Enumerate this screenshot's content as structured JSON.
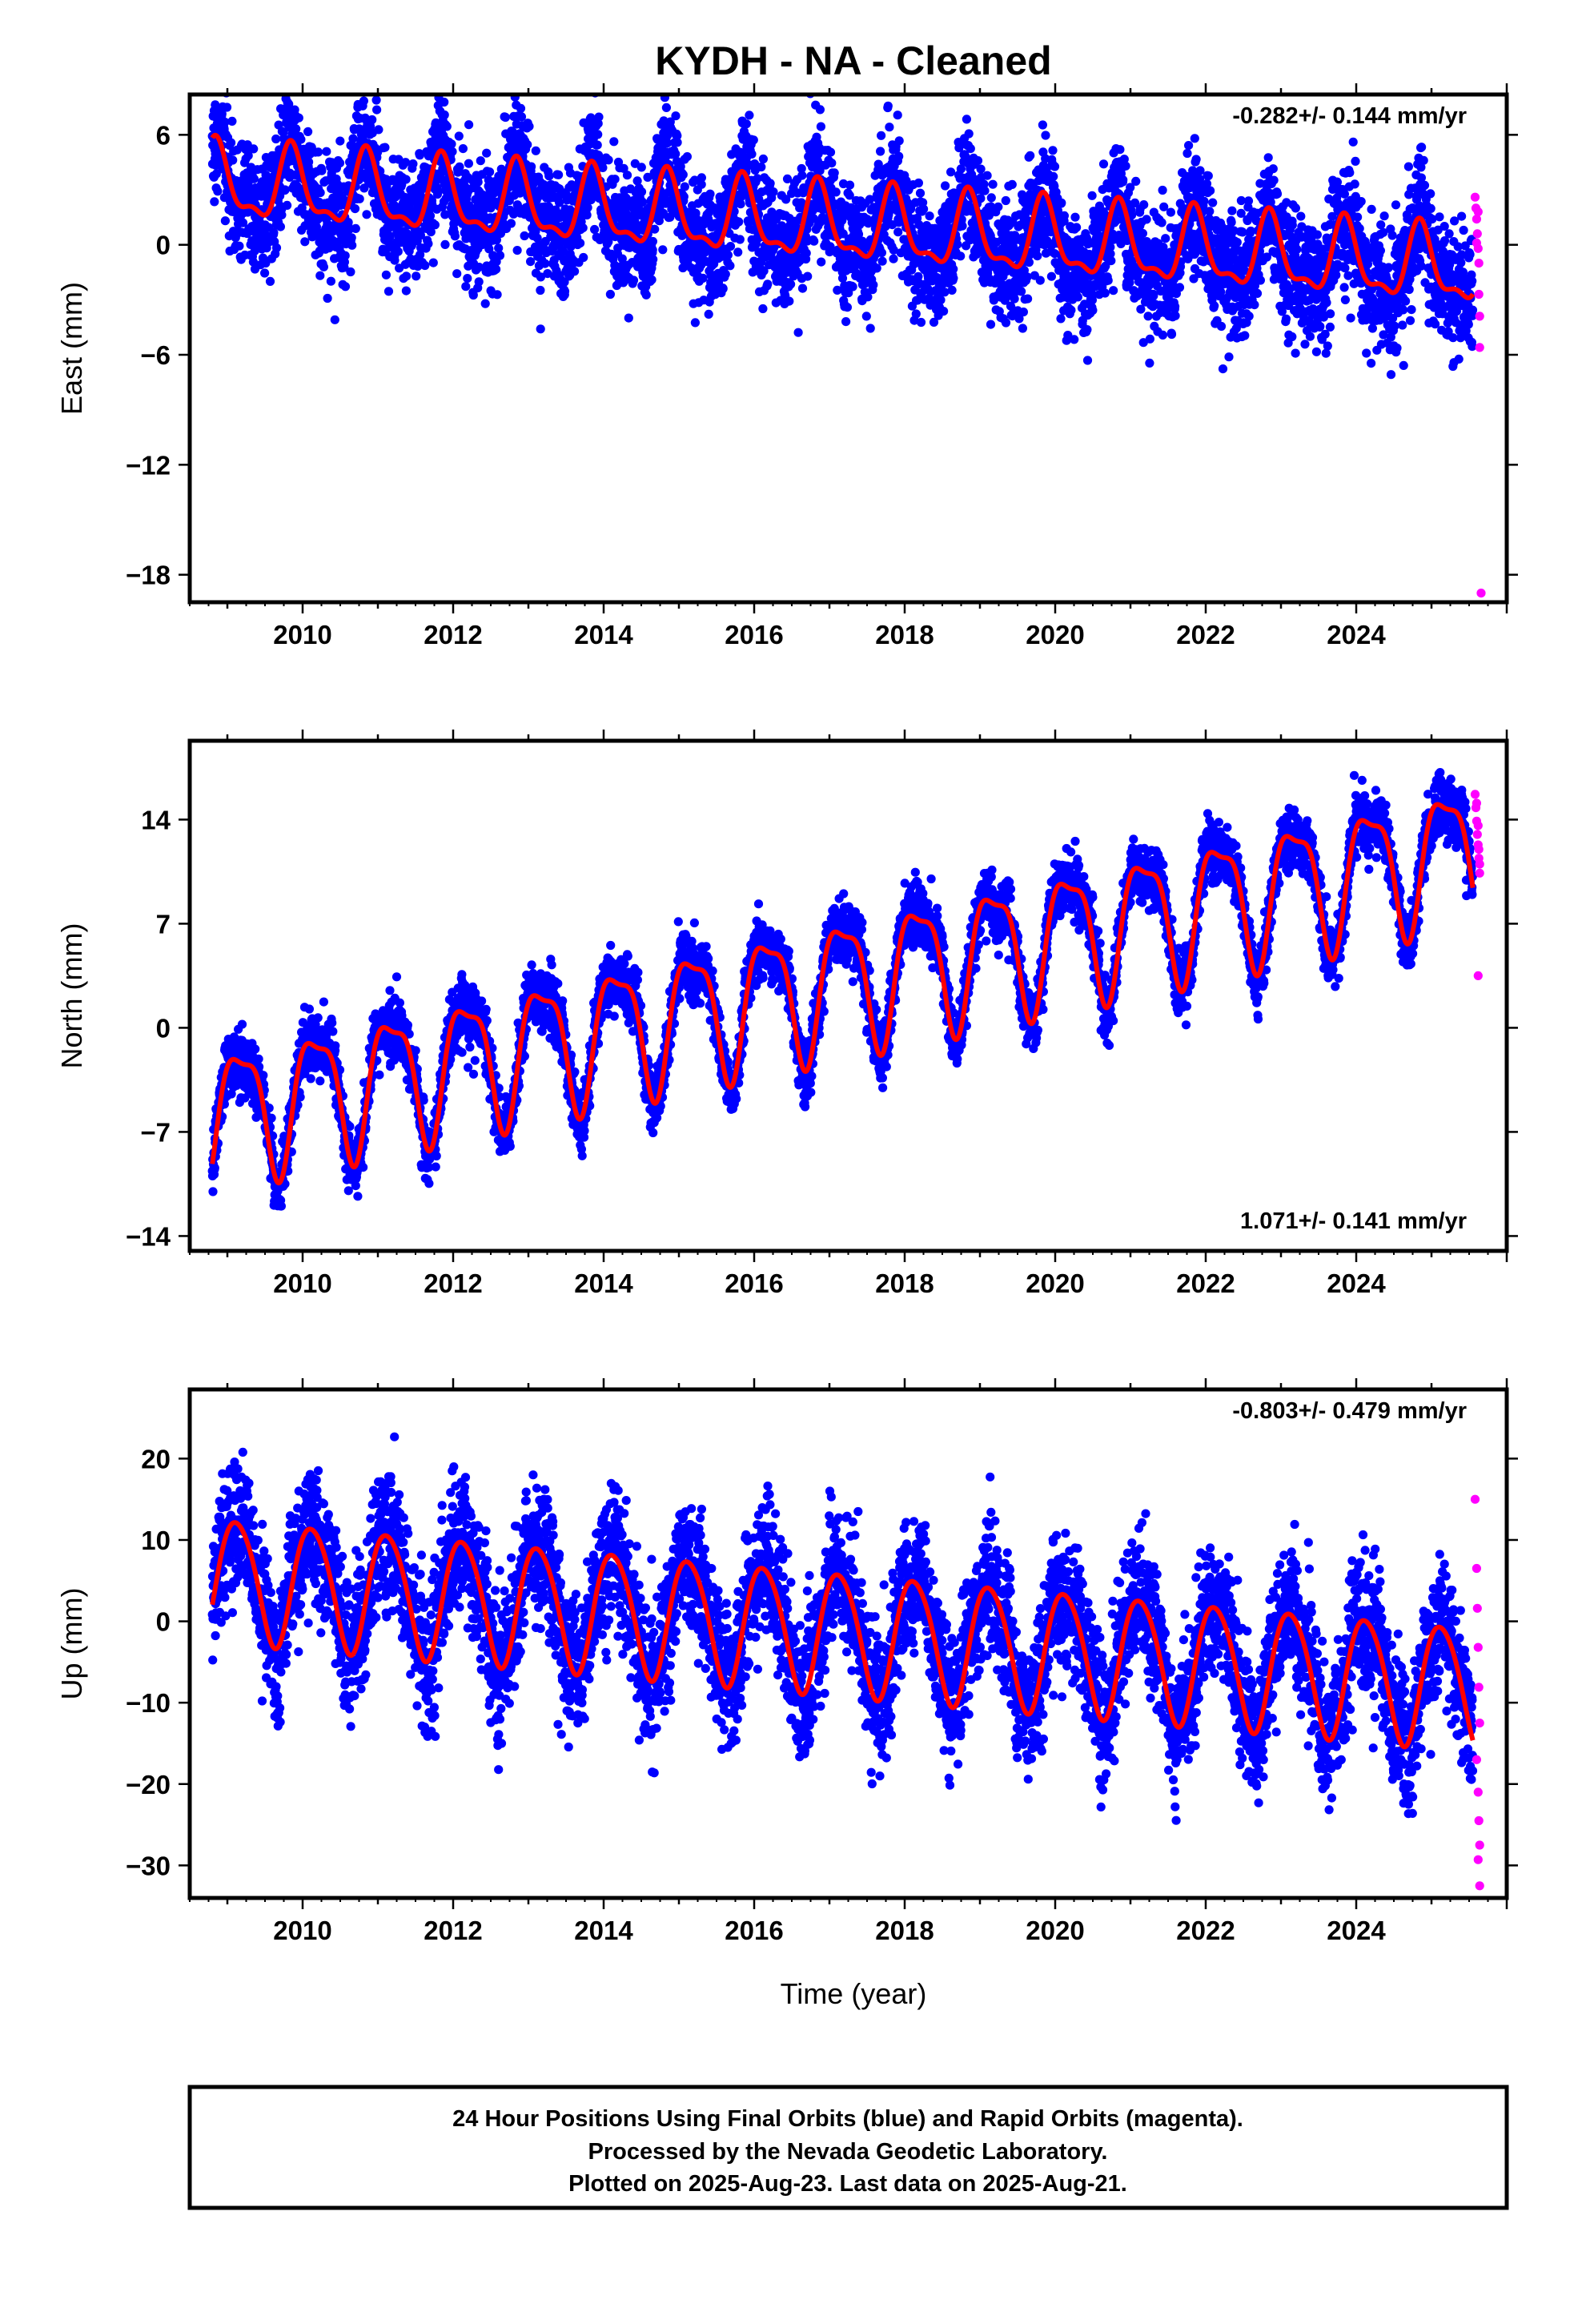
{
  "title": "KYDH  - NA - Cleaned",
  "xlabel": "Time (year)",
  "footer": {
    "line1": "24 Hour Positions Using Final Orbits (blue) and Rapid Orbits (magenta).",
    "line2": "Processed by the Nevada Geodetic Laboratory.",
    "line3": "Plotted on 2025-Aug-23. Last data on 2025-Aug-21."
  },
  "colors": {
    "final": "#0000ff",
    "rapid": "#ff00ff",
    "model": "#ff0000",
    "frame": "#000000"
  },
  "chart_data": [
    {
      "type": "scatter",
      "ylabel": "East (mm)",
      "rate_label": "-0.282+/- 0.144 mm/yr",
      "rate_position": "top-right",
      "xlim": [
        2008.5,
        2026.0
      ],
      "ylim": [
        -19.5,
        8.2
      ],
      "xticks": [
        2010,
        2012,
        2014,
        2016,
        2018,
        2020,
        2022,
        2024
      ],
      "yticks": [
        6,
        0,
        -6,
        -12,
        -18
      ],
      "series": [
        {
          "role": "final_orbits",
          "model": {
            "start": 2008.8,
            "end": 2025.55,
            "offset": 3.35,
            "rate": -0.282,
            "annual_amp": 1.9,
            "annual_phase": 0.92,
            "semi_amp": 0.75,
            "semi_phase": 2.1
          },
          "scatter_sd": 1.6
        },
        {
          "role": "rapid_orbits",
          "points": [
            [
              2025.58,
              2.6
            ],
            [
              2025.59,
              2.0
            ],
            [
              2025.6,
              1.4
            ],
            [
              2025.61,
              0.6
            ],
            [
              2025.62,
              -0.2
            ],
            [
              2025.63,
              -1.0
            ],
            [
              2025.6,
              0.1
            ],
            [
              2025.62,
              1.8
            ],
            [
              2025.63,
              -2.7
            ],
            [
              2025.64,
              -3.9
            ],
            [
              2025.64,
              -5.6
            ],
            [
              2025.66,
              -19.0
            ]
          ]
        }
      ]
    },
    {
      "type": "scatter",
      "ylabel": "North (mm)",
      "rate_label": "1.071+/- 0.141 mm/yr",
      "rate_position": "bottom-right",
      "xlim": [
        2008.5,
        2026.0
      ],
      "ylim": [
        -15.0,
        19.3
      ],
      "xticks": [
        2010,
        2012,
        2014,
        2016,
        2018,
        2020,
        2022,
        2024
      ],
      "yticks": [
        14,
        7,
        0,
        -7,
        -14
      ],
      "series": [
        {
          "role": "final_orbits",
          "model": {
            "start": 2008.8,
            "end": 2025.55,
            "offset": -5.8,
            "rate": 1.071,
            "annual_amp": 4.3,
            "annual_phase": -1.1,
            "semi_amp": 1.3,
            "semi_phase": 0.7
          },
          "scatter_sd": 1.0
        },
        {
          "role": "rapid_orbits",
          "points": [
            [
              2025.58,
              15.7
            ],
            [
              2025.59,
              14.8
            ],
            [
              2025.6,
              13.9
            ],
            [
              2025.61,
              13.0
            ],
            [
              2025.62,
              12.3
            ],
            [
              2025.63,
              11.4
            ],
            [
              2025.64,
              10.4
            ],
            [
              2025.6,
              15.1
            ],
            [
              2025.62,
              13.6
            ],
            [
              2025.63,
              12.0
            ],
            [
              2025.64,
              11.0
            ],
            [
              2025.62,
              3.5
            ]
          ]
        }
      ]
    },
    {
      "type": "scatter",
      "ylabel": "Up (mm)",
      "rate_label": "-0.803+/- 0.479 mm/yr",
      "rate_position": "top-right",
      "xlim": [
        2008.5,
        2026.0
      ],
      "ylim": [
        -34.0,
        28.5
      ],
      "xticks": [
        2010,
        2012,
        2014,
        2016,
        2018,
        2020,
        2022,
        2024
      ],
      "yticks": [
        20,
        10,
        0,
        -10,
        -20,
        -30
      ],
      "series": [
        {
          "role": "final_orbits",
          "model": {
            "start": 2008.8,
            "end": 2025.55,
            "offset": 5.5,
            "rate": -0.803,
            "annual_amp": 7.5,
            "annual_phase": -0.8,
            "semi_amp": 0.8,
            "semi_phase": 1.0
          },
          "scatter_sd": 4.0
        },
        {
          "role": "rapid_orbits",
          "points": [
            [
              2025.58,
              15.0
            ],
            [
              2025.6,
              6.5
            ],
            [
              2025.61,
              1.6
            ],
            [
              2025.62,
              -3.2
            ],
            [
              2025.63,
              -8.1
            ],
            [
              2025.64,
              -12.5
            ],
            [
              2025.6,
              -17.0
            ],
            [
              2025.62,
              -21.0
            ],
            [
              2025.63,
              -24.5
            ],
            [
              2025.64,
              -27.5
            ],
            [
              2025.62,
              -29.3
            ],
            [
              2025.64,
              -32.5
            ]
          ]
        }
      ]
    }
  ]
}
